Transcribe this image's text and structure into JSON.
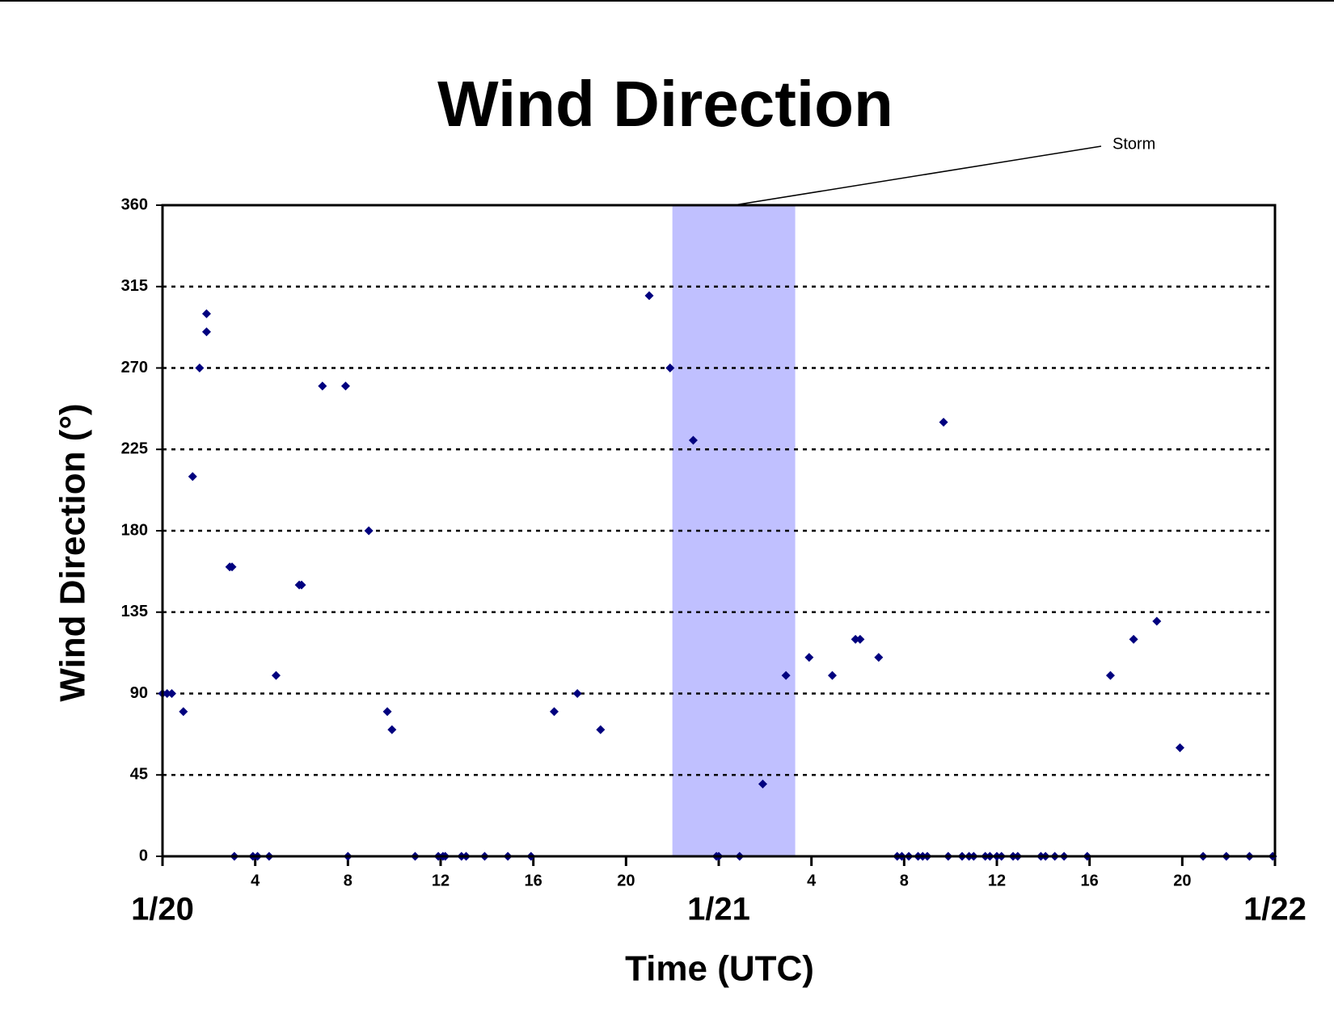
{
  "chart_data": {
    "type": "scatter",
    "title": "Wind Direction",
    "x_label": "Time (UTC)",
    "y_label": "Wind Direction (°)",
    "color": "#00007f",
    "xlim": [
      0,
      48
    ],
    "ylim": [
      0,
      360
    ],
    "xticks": [
      {
        "value": 0,
        "label": "1/20"
      },
      4,
      8,
      12,
      16,
      20,
      {
        "value": 24,
        "label": "1/21"
      },
      {
        "value": 28,
        "label": "4"
      },
      {
        "value": 32,
        "label": "8"
      },
      {
        "value": 36,
        "label": "12"
      },
      {
        "value": 40,
        "label": "16"
      },
      {
        "value": 44,
        "label": "20"
      },
      {
        "value": 48,
        "label": "1/22"
      }
    ],
    "yticks": [
      0,
      45,
      90,
      135,
      180,
      225,
      270,
      315,
      360
    ],
    "grid": true,
    "annotation": {
      "text": "Storm",
      "x_start": 22,
      "x_end": 27.3,
      "color": "#c0c0ff"
    },
    "x": [
      0,
      0.2,
      0.4,
      0.9,
      1.3,
      1.6,
      1.9,
      1.9,
      2.9,
      3.0,
      3.1,
      3.9,
      4.1,
      4.6,
      4.9,
      5.9,
      6.0,
      6.9,
      7.9,
      8.0,
      8.9,
      9.7,
      9.9,
      10.9,
      11.9,
      12.1,
      12.2,
      12.9,
      13.1,
      13.9,
      14.9,
      15.9,
      16.9,
      17.9,
      18.9,
      21.0,
      21.9,
      22.9,
      23.9,
      24.0,
      24.9,
      25.9,
      26.9,
      27.9,
      28.9,
      29.9,
      30.1,
      30.9,
      31.7,
      31.9,
      32.2,
      32.6,
      32.8,
      33.0,
      33.7,
      33.9,
      34.5,
      34.8,
      35.0,
      35.5,
      35.7,
      36.0,
      36.2,
      36.7,
      36.9,
      37.9,
      38.1,
      38.5,
      38.9,
      39.9,
      40.9,
      41.9,
      42.9,
      43.9,
      44.9,
      45.9,
      46.9,
      47.9
    ],
    "values": [
      90,
      90,
      90,
      80,
      210,
      270,
      300,
      290,
      160,
      160,
      0,
      0,
      0,
      0,
      100,
      150,
      150,
      260,
      260,
      0,
      180,
      80,
      70,
      0,
      0,
      0,
      0,
      0,
      0,
      0,
      0,
      0,
      80,
      90,
      70,
      310,
      270,
      230,
      0,
      0,
      0,
      40,
      100,
      110,
      100,
      120,
      120,
      110,
      0,
      0,
      0,
      0,
      0,
      0,
      240,
      0,
      0,
      0,
      0,
      0,
      0,
      0,
      0,
      0,
      0,
      0,
      0,
      0,
      0,
      0,
      100,
      120,
      130,
      60,
      0,
      0,
      0,
      0
    ]
  }
}
